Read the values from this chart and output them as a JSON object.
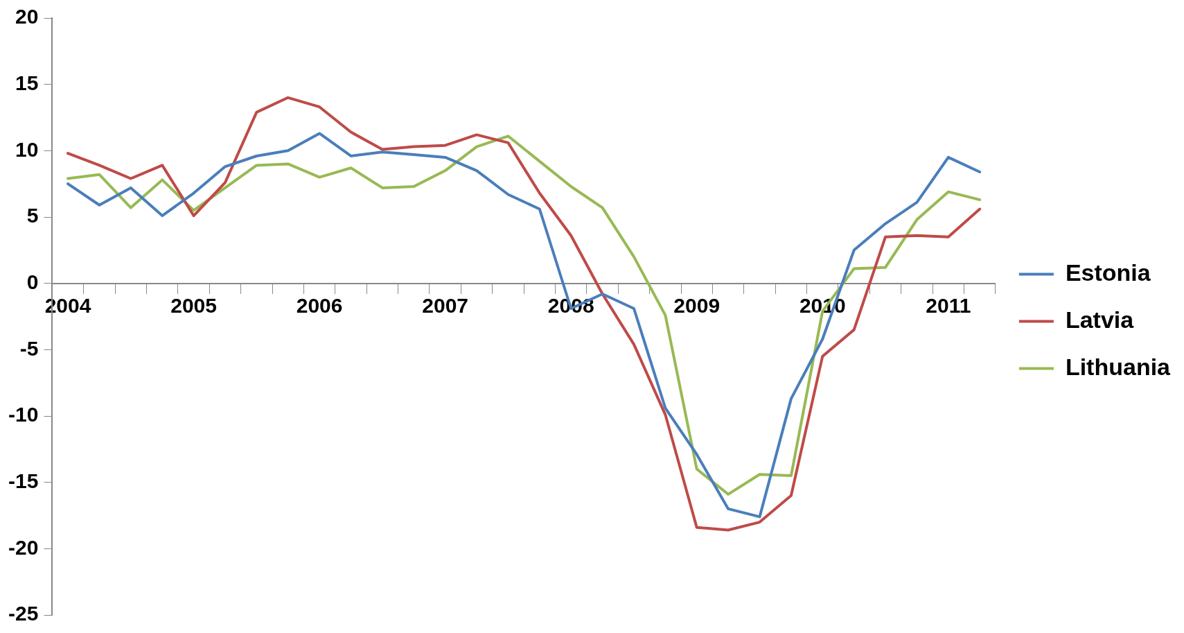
{
  "chart_data": {
    "type": "line",
    "categories": [
      "2004",
      null,
      null,
      null,
      "2005",
      null,
      null,
      null,
      "2006",
      null,
      null,
      null,
      "2007",
      null,
      null,
      null,
      "2008",
      null,
      null,
      null,
      "2009",
      null,
      null,
      null,
      "2010",
      null,
      null,
      null,
      "2011",
      null
    ],
    "series": [
      {
        "name": "Estonia",
        "color": "#4a7ebb",
        "values": [
          7.5,
          5.9,
          7.2,
          5.1,
          6.8,
          8.8,
          9.6,
          10.0,
          11.3,
          9.6,
          9.9,
          9.7,
          9.5,
          8.5,
          6.7,
          5.6,
          -1.9,
          -0.8,
          -1.9,
          -9.4,
          -12.9,
          -17.0,
          -17.6,
          -8.7,
          -4.2,
          2.5,
          4.5,
          6.1,
          9.5,
          8.4
        ]
      },
      {
        "name": "Latvia",
        "color": "#be4b48",
        "values": [
          9.8,
          8.9,
          7.9,
          8.9,
          5.1,
          7.6,
          12.9,
          14.0,
          13.3,
          11.4,
          10.1,
          10.3,
          10.4,
          11.2,
          10.6,
          6.8,
          3.6,
          -0.8,
          -4.6,
          -9.9,
          -18.4,
          -18.6,
          -18.0,
          -16.0,
          -5.5,
          -3.5,
          3.5,
          3.6,
          3.5,
          5.6
        ]
      },
      {
        "name": "Lithuania",
        "color": "#98b954",
        "values": [
          7.9,
          8.2,
          5.7,
          7.8,
          5.5,
          7.2,
          8.9,
          9.0,
          8.0,
          8.7,
          7.2,
          7.3,
          8.5,
          10.3,
          11.1,
          9.2,
          7.3,
          5.7,
          2.0,
          -2.4,
          -14.0,
          -15.9,
          -14.4,
          -14.5,
          -2.1,
          1.1,
          1.2,
          4.8,
          6.9,
          6.3
        ]
      }
    ],
    "ylim": [
      -25,
      20
    ],
    "yticks": [
      -25,
      -20,
      -15,
      -10,
      -5,
      0,
      5,
      10,
      15,
      20
    ],
    "grid": false,
    "legend": "right",
    "marker": "none",
    "line_style": "solid"
  }
}
